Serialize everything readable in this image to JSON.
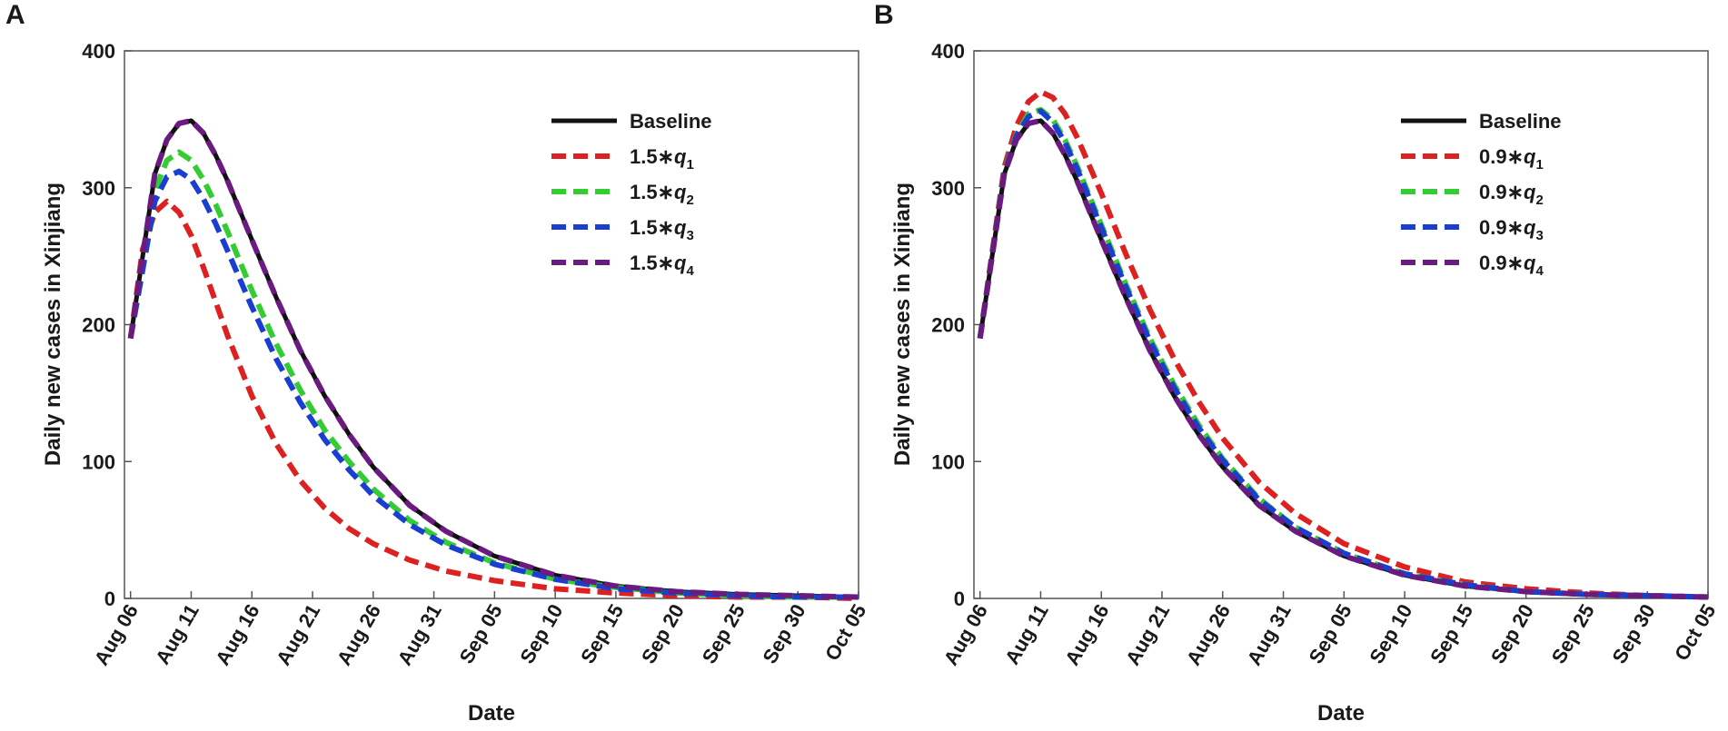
{
  "chart_data": [
    {
      "panel": "A",
      "type": "line",
      "title": "",
      "xlabel": "Date",
      "ylabel": "Daily new cases in Xinjiang",
      "xlim": [
        -0.5,
        60
      ],
      "ylim": [
        0,
        400
      ],
      "yticks": [
        0,
        100,
        200,
        300,
        400
      ],
      "x_tick_positions": [
        0,
        5,
        10,
        15,
        20,
        25,
        30,
        35,
        40,
        45,
        50,
        55,
        60
      ],
      "x_tick_labels": [
        "Aug 06",
        "Aug 11",
        "Aug 16",
        "Aug 21",
        "Aug 26",
        "Aug 31",
        "Sep 05",
        "Sep 10",
        "Sep 15",
        "Sep 20",
        "Sep 25",
        "Sep 30",
        "Oct 05"
      ],
      "legend_position": "top-right",
      "series": [
        {
          "name": "Baseline",
          "prefix": "Baseline",
          "param": "",
          "sub": "",
          "color": "#111111",
          "dash": "solid",
          "x": [
            0,
            2,
            3,
            4,
            5,
            6,
            7,
            8,
            10,
            12,
            14,
            16,
            18,
            20,
            23,
            26,
            30,
            35,
            40,
            45,
            50,
            55,
            60
          ],
          "values": [
            190,
            310,
            335,
            347,
            349,
            340,
            324,
            305,
            262,
            220,
            181,
            148,
            120,
            96,
            68,
            49,
            31,
            17,
            9,
            5,
            3,
            2,
            1
          ]
        },
        {
          "name": "1.5*q1",
          "prefix": "1.5∗",
          "param": "q",
          "sub": "1",
          "color": "#dd2020",
          "dash": "dash",
          "x": [
            0,
            1,
            2,
            3,
            4,
            5,
            6,
            7,
            8,
            10,
            12,
            14,
            16,
            18,
            20,
            23,
            26,
            30,
            35,
            40,
            45,
            50,
            55,
            60
          ],
          "values": [
            190,
            255,
            282,
            290,
            282,
            265,
            242,
            217,
            192,
            148,
            113,
            86,
            66,
            51,
            40,
            28,
            20,
            13,
            7,
            4,
            2,
            1,
            1,
            0
          ]
        },
        {
          "name": "1.5*q2",
          "prefix": "1.5∗",
          "param": "q",
          "sub": "2",
          "color": "#33cc33",
          "dash": "dash",
          "x": [
            0,
            2,
            3,
            4,
            5,
            6,
            7,
            8,
            10,
            12,
            14,
            16,
            18,
            20,
            23,
            26,
            30,
            35,
            40,
            45,
            50,
            55,
            60
          ],
          "values": [
            190,
            298,
            320,
            326,
            320,
            306,
            288,
            268,
            225,
            186,
            152,
            123,
            100,
            80,
            57,
            41,
            26,
            14,
            8,
            4,
            2,
            1,
            1
          ]
        },
        {
          "name": "1.5*q3",
          "prefix": "1.5∗",
          "param": "q",
          "sub": "3",
          "color": "#1a3fd0",
          "dash": "dash",
          "x": [
            0,
            2,
            3,
            4,
            5,
            6,
            7,
            8,
            10,
            12,
            14,
            16,
            18,
            20,
            23,
            26,
            30,
            35,
            40,
            45,
            50,
            55,
            60
          ],
          "values": [
            190,
            290,
            308,
            312,
            306,
            292,
            274,
            254,
            213,
            175,
            143,
            116,
            94,
            75,
            54,
            39,
            25,
            14,
            7,
            4,
            2,
            1,
            1
          ]
        },
        {
          "name": "1.5*q4",
          "prefix": "1.5∗",
          "param": "q",
          "sub": "4",
          "color": "#6a1b80",
          "dash": "dash",
          "x": [
            0,
            2,
            3,
            4,
            5,
            6,
            7,
            8,
            10,
            12,
            14,
            16,
            18,
            20,
            23,
            26,
            30,
            35,
            40,
            45,
            50,
            55,
            60
          ],
          "values": [
            190,
            310,
            335,
            347,
            349,
            340,
            324,
            305,
            262,
            220,
            181,
            148,
            120,
            96,
            68,
            49,
            31,
            17,
            9,
            5,
            3,
            2,
            1
          ]
        }
      ]
    },
    {
      "panel": "B",
      "type": "line",
      "title": "",
      "xlabel": "Date",
      "ylabel": "Daily new cases in Xinjiang",
      "xlim": [
        -0.5,
        60
      ],
      "ylim": [
        0,
        400
      ],
      "yticks": [
        0,
        100,
        200,
        300,
        400
      ],
      "x_tick_positions": [
        0,
        5,
        10,
        15,
        20,
        25,
        30,
        35,
        40,
        45,
        50,
        55,
        60
      ],
      "x_tick_labels": [
        "Aug 06",
        "Aug 11",
        "Aug 16",
        "Aug 21",
        "Aug 26",
        "Aug 31",
        "Sep 05",
        "Sep 10",
        "Sep 15",
        "Sep 20",
        "Sep 25",
        "Sep 30",
        "Oct 05"
      ],
      "legend_position": "top-right",
      "series": [
        {
          "name": "Baseline",
          "prefix": "Baseline",
          "param": "",
          "sub": "",
          "color": "#111111",
          "dash": "solid",
          "x": [
            0,
            2,
            3,
            4,
            5,
            6,
            7,
            8,
            10,
            12,
            14,
            16,
            18,
            20,
            23,
            26,
            30,
            35,
            40,
            45,
            50,
            55,
            60
          ],
          "values": [
            190,
            310,
            335,
            347,
            349,
            340,
            324,
            305,
            262,
            220,
            181,
            148,
            120,
            96,
            68,
            49,
            31,
            17,
            9,
            5,
            3,
            2,
            1
          ]
        },
        {
          "name": "0.9*q1",
          "prefix": "0.9∗",
          "param": "q",
          "sub": "1",
          "color": "#dd2020",
          "dash": "dash",
          "x": [
            0,
            2,
            3,
            4,
            5,
            6,
            7,
            8,
            10,
            12,
            14,
            16,
            18,
            20,
            23,
            26,
            30,
            35,
            40,
            45,
            50,
            55,
            60
          ],
          "values": [
            190,
            315,
            345,
            363,
            370,
            366,
            354,
            337,
            296,
            252,
            211,
            175,
            144,
            117,
            85,
            62,
            40,
            23,
            12,
            7,
            4,
            2,
            1
          ]
        },
        {
          "name": "0.9*q2",
          "prefix": "0.9∗",
          "param": "q",
          "sub": "2",
          "color": "#33cc33",
          "dash": "dash",
          "x": [
            0,
            2,
            3,
            4,
            5,
            6,
            7,
            8,
            10,
            12,
            14,
            16,
            18,
            20,
            23,
            26,
            30,
            35,
            40,
            45,
            50,
            55,
            60
          ],
          "values": [
            190,
            312,
            339,
            354,
            357,
            350,
            335,
            316,
            273,
            230,
            190,
            156,
            127,
            102,
            73,
            52,
            33,
            18,
            10,
            5,
            3,
            2,
            1
          ]
        },
        {
          "name": "0.9*q3",
          "prefix": "0.9∗",
          "param": "q",
          "sub": "3",
          "color": "#1a3fd0",
          "dash": "dash",
          "x": [
            0,
            2,
            3,
            4,
            5,
            6,
            7,
            8,
            10,
            12,
            14,
            16,
            18,
            20,
            23,
            26,
            30,
            35,
            40,
            45,
            50,
            55,
            60
          ],
          "values": [
            190,
            311,
            338,
            352,
            356,
            348,
            333,
            314,
            271,
            228,
            188,
            154,
            125,
            101,
            72,
            52,
            33,
            18,
            10,
            5,
            3,
            2,
            1
          ]
        },
        {
          "name": "0.9*q4",
          "prefix": "0.9∗",
          "param": "q",
          "sub": "4",
          "color": "#6a1b80",
          "dash": "dash",
          "x": [
            0,
            2,
            3,
            4,
            5,
            6,
            7,
            8,
            10,
            12,
            14,
            16,
            18,
            20,
            23,
            26,
            30,
            35,
            40,
            45,
            50,
            55,
            60
          ],
          "values": [
            190,
            310,
            335,
            347,
            349,
            340,
            324,
            305,
            262,
            220,
            181,
            148,
            120,
            96,
            68,
            49,
            31,
            17,
            9,
            5,
            3,
            2,
            1
          ]
        }
      ]
    }
  ]
}
